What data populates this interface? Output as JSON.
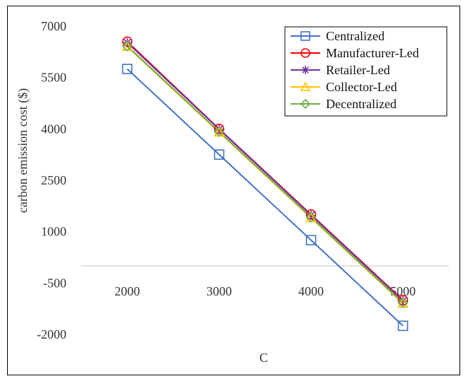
{
  "chart_data": {
    "type": "line",
    "xlabel": "C",
    "ylabel": "carbon emission cost ($)",
    "x": [
      2000,
      3000,
      4000,
      5000
    ],
    "x_ticks": [
      "2000",
      "3000",
      "4000",
      "5000"
    ],
    "y_ticks": [
      7000,
      5500,
      4000,
      2500,
      1000,
      -500,
      -2000
    ],
    "y_tick_labels": [
      "7000",
      "5500",
      "4000",
      "2500",
      "1000",
      "-500",
      "-2000"
    ],
    "ylim": [
      -2000,
      7000
    ],
    "grid": false,
    "legend_position": "top-right",
    "series": [
      {
        "name": "Centralized",
        "color": "#4472C4",
        "marker": "square",
        "values": [
          5750,
          3250,
          750,
          -1750
        ]
      },
      {
        "name": "Manufacturer-Led",
        "color": "#FF0000",
        "marker": "circle",
        "values": [
          6550,
          4000,
          1500,
          -1000
        ]
      },
      {
        "name": "Retailer-Led",
        "color": "#7030A0",
        "marker": "asterisk",
        "values": [
          6520,
          3990,
          1480,
          -1020
        ]
      },
      {
        "name": "Collector-Led",
        "color": "#FFC000",
        "marker": "triangle",
        "values": [
          6400,
          3900,
          1400,
          -1100
        ]
      },
      {
        "name": "Decentralized",
        "color": "#70AD47",
        "marker": "diamond",
        "values": [
          6420,
          3920,
          1420,
          -1080
        ]
      }
    ]
  }
}
